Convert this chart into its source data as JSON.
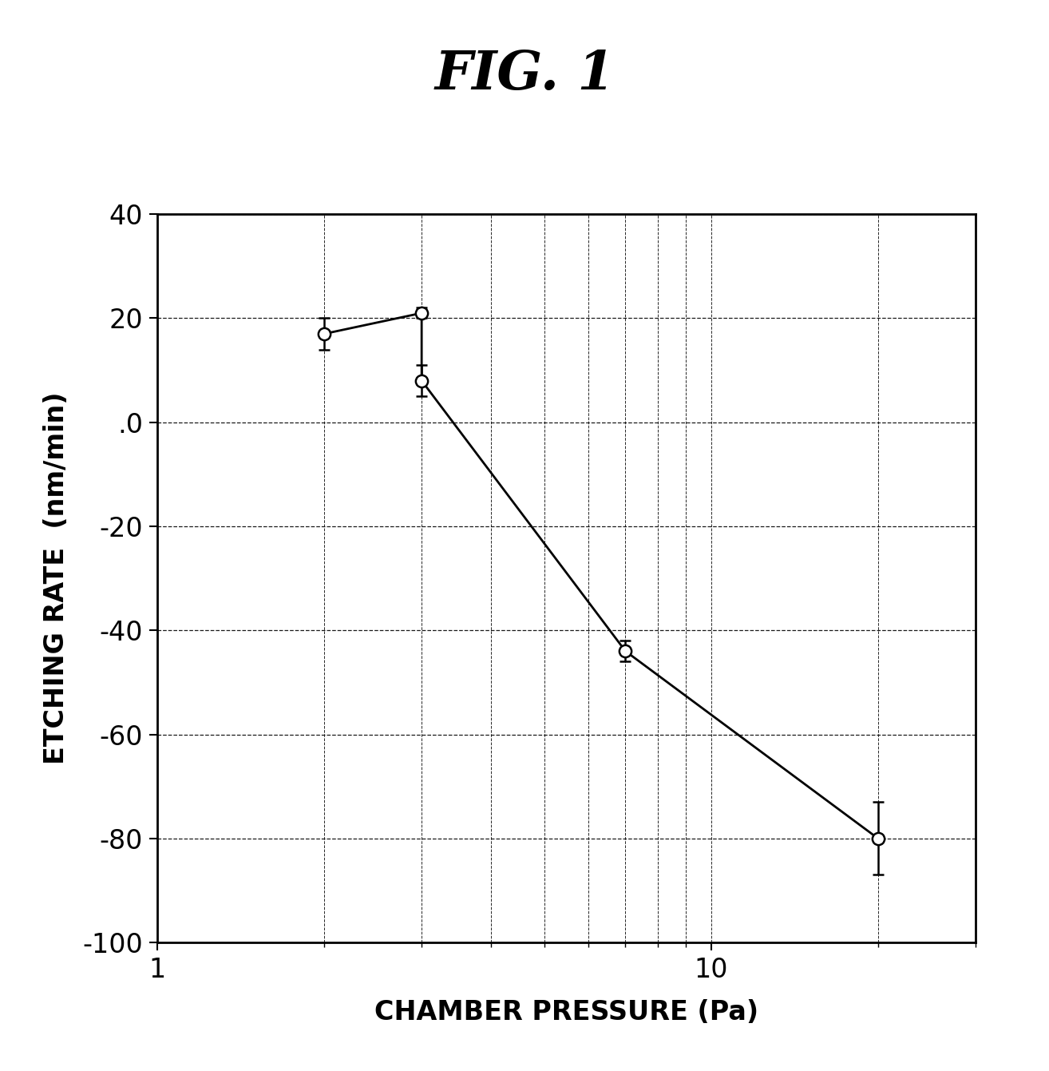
{
  "title": "FIG. 1",
  "xlabel": "CHAMBER PRESSURE (Pa)",
  "ylabel": "ETCHING RATE  (nm/min)",
  "x_data": [
    2.0,
    3.0,
    3.0,
    7.0,
    20.0
  ],
  "y_data": [
    17.0,
    21.0,
    8.0,
    -44.0,
    -80.0
  ],
  "y_err": [
    3.0,
    1.0,
    3.0,
    2.0,
    7.0
  ],
  "xlim_log": [
    1,
    30
  ],
  "ylim": [
    -100,
    40
  ],
  "yticks": [
    -100,
    -80,
    -60,
    -40,
    -20,
    0,
    20,
    40
  ],
  "ytick_labels": [
    "-100",
    "-80",
    "-60",
    "-40",
    "-20",
    ".0",
    "20",
    "40"
  ],
  "line_color": "#000000",
  "background_color": "#ffffff",
  "grid_color": "#000000",
  "title_fontsize": 48,
  "axis_label_fontsize": 24,
  "tick_fontsize": 24
}
